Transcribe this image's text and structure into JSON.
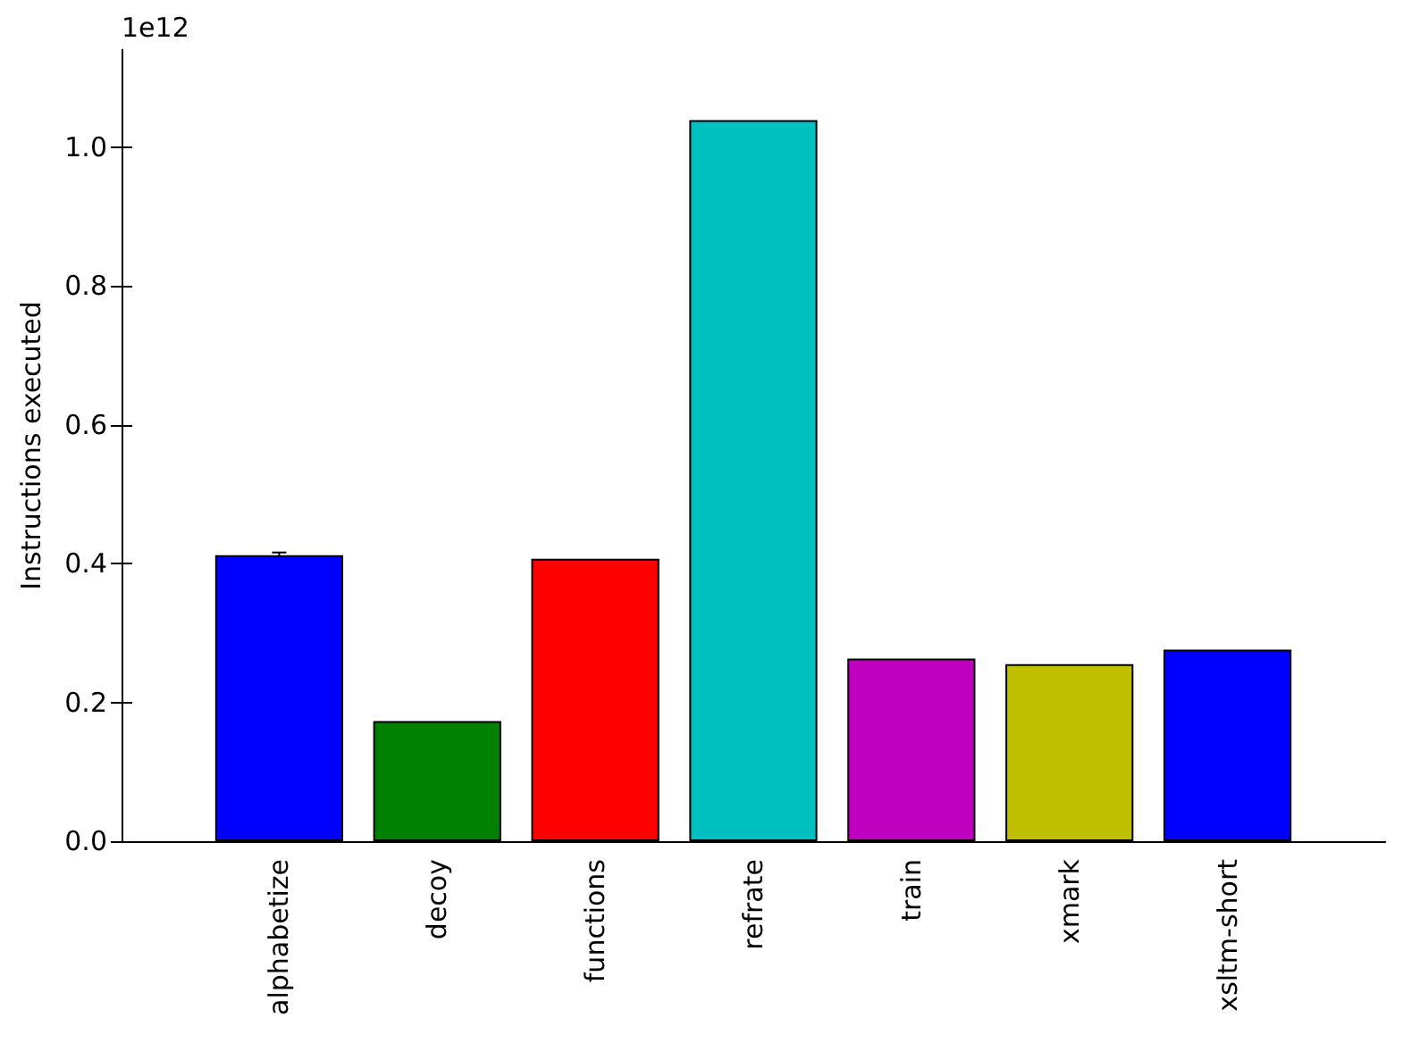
{
  "chart_data": {
    "type": "bar",
    "ylabel": "Instructions executed",
    "annotations": [
      "1e12"
    ],
    "categories": [
      "alphabetize",
      "decoy",
      "functions",
      "refrate",
      "train",
      "xmark",
      "xsltm-short"
    ],
    "values": [
      0.412,
      0.173,
      0.407,
      1.039,
      0.263,
      0.255,
      0.276
    ],
    "errors": [
      0.004,
      null,
      null,
      null,
      null,
      null,
      null
    ],
    "colors": [
      "#0000ff",
      "#008000",
      "#ff0000",
      "#00bfbf",
      "#bf00bf",
      "#bfbf00",
      "#0000ff"
    ],
    "ylim": [
      0,
      1.14
    ],
    "yticks": [
      {
        "value": 0,
        "label": "0.0"
      },
      0.2,
      0.4,
      0.6,
      0.8,
      {
        "value": 1,
        "label": "1.0"
      }
    ],
    "grid": false
  }
}
